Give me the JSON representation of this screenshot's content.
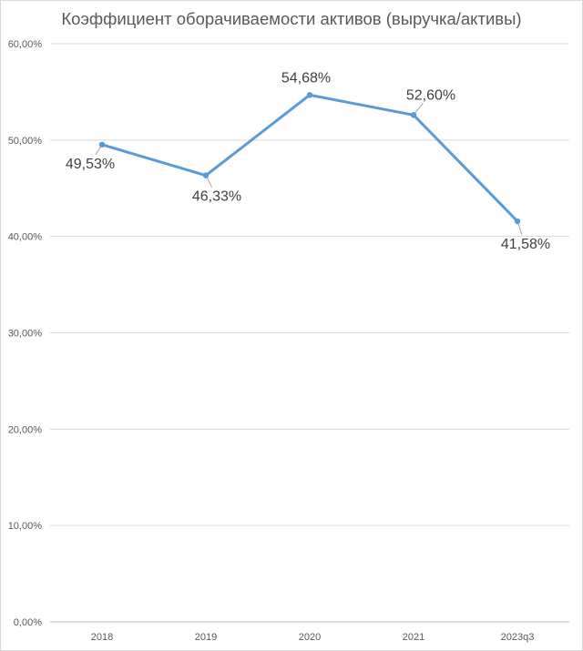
{
  "chart_data": {
    "type": "line",
    "title": "Коэффициент оборачиваемости активов (выручка/активы)",
    "categories": [
      "2018",
      "2019",
      "2020",
      "2021",
      "2023q3"
    ],
    "series": [
      {
        "values": [
          49.53,
          46.33,
          54.68,
          52.6,
          41.58
        ],
        "labels": [
          "49,53%",
          "46,33%",
          "54,68%",
          "52,60%",
          "41,58%"
        ],
        "color": "#5b9bd5"
      }
    ],
    "y_ticks": [
      0,
      10,
      20,
      30,
      40,
      50,
      60
    ],
    "y_tick_labels": [
      "0,00%",
      "10,00%",
      "20,00%",
      "30,00%",
      "40,00%",
      "50,00%",
      "60,00%"
    ],
    "ylim": [
      0,
      60
    ],
    "grid": true,
    "legend": "none",
    "xlabel": "",
    "ylabel": ""
  }
}
